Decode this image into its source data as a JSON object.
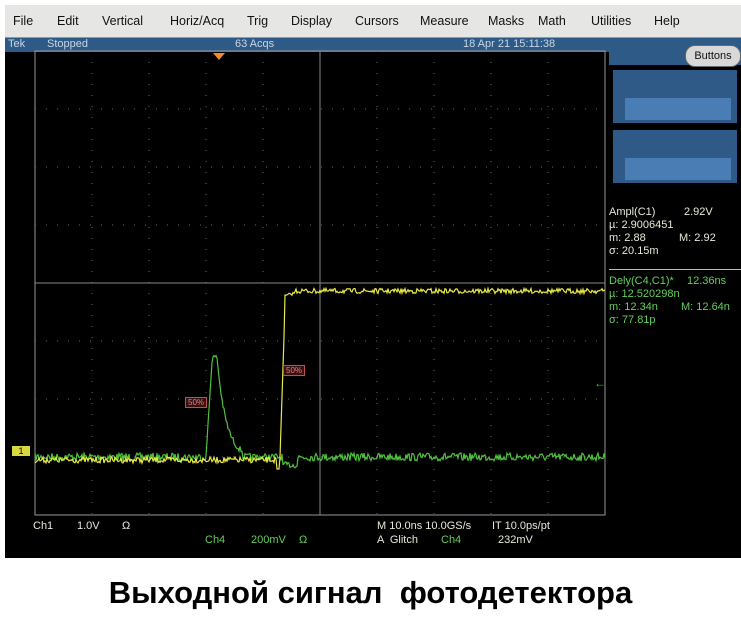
{
  "menu": [
    "File",
    "Edit",
    "Vertical",
    "Horiz/Acq",
    "Trig",
    "Display",
    "Cursors",
    "Measure",
    "Masks",
    "Math",
    "Utilities",
    "Help"
  ],
  "status": {
    "brand": "Tek",
    "state": "Stopped",
    "acqs": "63 Acqs",
    "datetime": "18 Apr 21 15:11:38"
  },
  "buttons_label": "Buttons",
  "measurements": {
    "ampl": {
      "label": "Ampl(C1)",
      "value": "2.92V",
      "mean": "µ: 2.9006451",
      "min": "m: 2.88",
      "max": "M: 2.92",
      "sigma": "σ: 20.15m"
    },
    "dely": {
      "label": "Dely(C4,C1)*",
      "value": "12.36ns",
      "mean": "µ: 12.520298n",
      "min": "m: 12.34n",
      "max": "M: 12.64n",
      "sigma": "σ: 77.81p"
    }
  },
  "markers": {
    "ch1": "1",
    "ref50a": "50%",
    "ref50b": "50%"
  },
  "readouts": {
    "ch1": {
      "name": "Ch1",
      "scale": "1.0V",
      "coupling": "Ω"
    },
    "ch4": {
      "name": "Ch4",
      "scale": "200mV",
      "coupling": "Ω"
    },
    "horiz": "M 10.0ns 10.0GS/s",
    "it": "IT 10.0ps/pt",
    "trig_mode": "A  Glitch",
    "trig_src": "Ch4",
    "trig_level": "232mV"
  },
  "colors": {
    "ch1": "#e8e84a",
    "ch4": "#4fc23c",
    "status_bar": "#2d5a86"
  },
  "caption": "Выходной сигнал  фотодетектора"
}
